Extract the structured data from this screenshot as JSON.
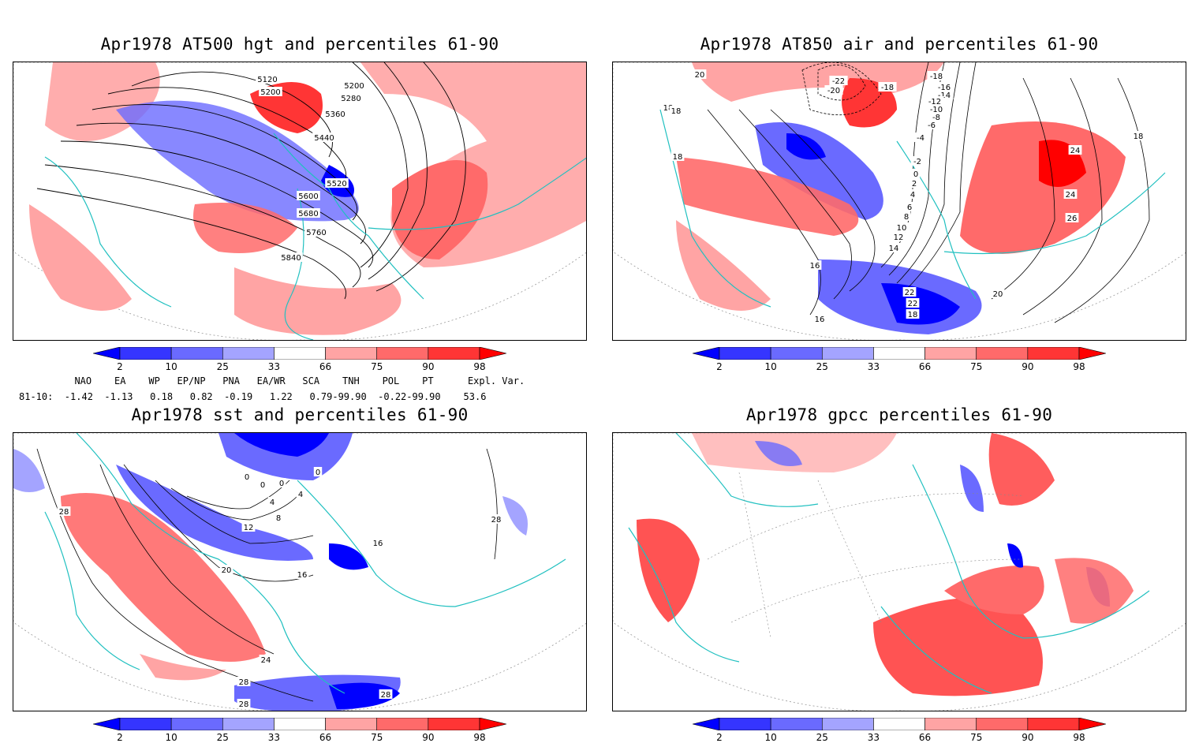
{
  "panels": [
    {
      "title": "Apr1978 AT500 hgt and percentiles 61-90",
      "contour_labels": [
        "5120",
        "5200",
        "5200",
        "5280",
        "5360",
        "5440",
        "5520",
        "5600",
        "5680",
        "5760",
        "5840"
      ]
    },
    {
      "title": "Apr1978 AT850 air and percentiles 61-90",
      "contour_labels": [
        "20",
        "18",
        "18",
        "18",
        "-22",
        "-20",
        "-18",
        "-18",
        "-16",
        "-14",
        "-12",
        "-10",
        "-8",
        "-6",
        "-4",
        "-2",
        "0",
        "2",
        "4",
        "6",
        "8",
        "10",
        "12",
        "14",
        "16",
        "16",
        "18",
        "20",
        "22",
        "22",
        "24",
        "24",
        "26",
        "18"
      ]
    },
    {
      "title": "Apr1978 sst and percentiles 61-90",
      "contour_labels": [
        "28",
        "0",
        "0",
        "0",
        "4",
        "0",
        "4",
        "8",
        "12",
        "16",
        "16",
        "20",
        "24",
        "28",
        "28",
        "28",
        "28"
      ]
    },
    {
      "title": "Apr1978 gpcc percentiles 61-90",
      "contour_labels": []
    }
  ],
  "colorbar": {
    "ticks": [
      "2",
      "10",
      "25",
      "33",
      "66",
      "75",
      "90",
      "98"
    ],
    "colors": [
      "#0000ff",
      "#3535ff",
      "#6a6aff",
      "#a4a4ff",
      "#ffffff",
      "#ffa4a4",
      "#ff6a6a",
      "#ff3535",
      "#ff0000"
    ]
  },
  "indices": {
    "header": "  NAO    EA    WP   EP/NP   PNA   EA/WR   SCA    TNH    POL    PT      Expl. Var.",
    "row": "81-10:  -1.42  -1.13   0.18   0.82  -0.19   1.22   0.79-99.90  -0.22-99.90    53.6"
  },
  "map_style": {
    "coast_color": "#20c0c0",
    "contour_color": "#000000",
    "grid_color": "#888888"
  }
}
